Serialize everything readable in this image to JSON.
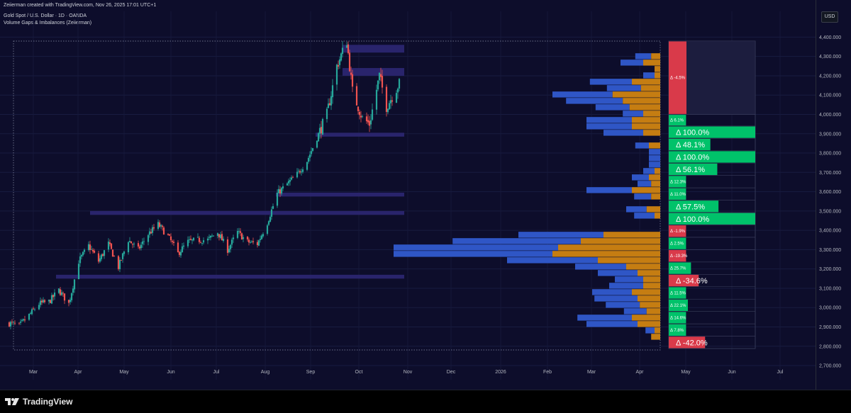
{
  "header": {
    "created_line": "Zeiierman created with TradingView.com, Nov 26, 2025 17:01 UTC+1",
    "symbol_line": "Gold Spot / U.S. Dollar · 1D · OANDA",
    "indicator_line": "Volume Gaps & Imbalances (Zeiierman)"
  },
  "price_axis": {
    "currency_label": "USD",
    "ticks": [
      "4,400.000",
      "4,300.000",
      "4,200.000",
      "4,100.000",
      "4,000.000",
      "3,900.000",
      "3,800.000",
      "3,700.000",
      "3,600.000",
      "3,500.000",
      "3,400.000",
      "3,300.000",
      "3,200.000",
      "3,100.000",
      "3,000.000",
      "2,900.000",
      "2,800.000",
      "2,700.000"
    ]
  },
  "footer": {
    "brand": "TradingView"
  },
  "colors": {
    "background": "#0d0d2b",
    "bull": "#26a69a",
    "bear": "#ef5350",
    "zone": "#2b2670",
    "buy_volume": "#2f56c6",
    "sell_volume": "#c57d12",
    "delta_positive": "#00c26a",
    "delta_negative": "#d93a4a"
  },
  "icons": {
    "logo": "tradingview-logo-icon"
  },
  "chart_data": {
    "type": "candlestick",
    "symbol": "Gold Spot / U.S. Dollar",
    "timeframe": "1D",
    "x_ticks": [
      "Mar",
      "Apr",
      "May",
      "Jun",
      "Jul",
      "Aug",
      "Sep",
      "Oct",
      "Nov",
      "Dec",
      "2026",
      "Feb",
      "Mar",
      "Apr",
      "May",
      "Jun",
      "Jul"
    ],
    "ylim": [
      2700,
      4400
    ],
    "price_path": [
      [
        "2025-02-24",
        2920
      ],
      [
        "2025-03-03",
        2905
      ],
      [
        "2025-03-10",
        2960
      ],
      [
        "2025-03-17",
        3020
      ],
      [
        "2025-03-24",
        3030
      ],
      [
        "2025-03-31",
        3090
      ],
      [
        "2025-04-07",
        3020
      ],
      [
        "2025-04-14",
        3240
      ],
      [
        "2025-04-21",
        3320
      ],
      [
        "2025-04-28",
        3240
      ],
      [
        "2025-05-05",
        3330
      ],
      [
        "2025-05-12",
        3210
      ],
      [
        "2025-05-19",
        3350
      ],
      [
        "2025-05-26",
        3300
      ],
      [
        "2025-06-02",
        3380
      ],
      [
        "2025-06-09",
        3430
      ],
      [
        "2025-06-16",
        3370
      ],
      [
        "2025-06-23",
        3280
      ],
      [
        "2025-06-30",
        3340
      ],
      [
        "2025-07-07",
        3350
      ],
      [
        "2025-07-14",
        3350
      ],
      [
        "2025-07-21",
        3390
      ],
      [
        "2025-07-28",
        3300
      ],
      [
        "2025-08-04",
        3390
      ],
      [
        "2025-08-11",
        3340
      ],
      [
        "2025-08-18",
        3330
      ],
      [
        "2025-08-25",
        3440
      ],
      [
        "2025-09-01",
        3590
      ],
      [
        "2025-09-08",
        3640
      ],
      [
        "2025-09-15",
        3690
      ],
      [
        "2025-09-22",
        3760
      ],
      [
        "2025-09-29",
        3880
      ],
      [
        "2025-10-06",
        4000
      ],
      [
        "2025-10-13",
        4250
      ],
      [
        "2025-10-20",
        4380
      ],
      [
        "2025-10-24",
        4120
      ],
      [
        "2025-10-31",
        3980
      ],
      [
        "2025-11-05",
        3950
      ],
      [
        "2025-11-12",
        4200
      ],
      [
        "2025-11-17",
        4040
      ],
      [
        "2025-11-26",
        4160
      ]
    ],
    "imbalance_zones": [
      {
        "start": "2025-10-17",
        "end": "2025-11-26",
        "low": 4320,
        "high": 4360
      },
      {
        "start": "2025-10-17",
        "end": "2025-11-26",
        "low": 4200,
        "high": 4240
      },
      {
        "start": "2025-09-28",
        "end": "2025-11-26",
        "low": 3885,
        "high": 3905
      },
      {
        "start": "2025-08-31",
        "end": "2025-11-26",
        "low": 3575,
        "high": 3595
      },
      {
        "start": "2025-04-22",
        "end": "2025-11-26",
        "low": 3480,
        "high": 3500
      },
      {
        "start": "2025-03-29",
        "end": "2025-11-26",
        "low": 3150,
        "high": 3170
      }
    ],
    "volume_profile": [
      {
        "price": 4300,
        "buy": 14,
        "sell": 8
      },
      {
        "price": 4267,
        "buy": 20,
        "sell": 15
      },
      {
        "price": 4234,
        "buy": 0,
        "sell": 5
      },
      {
        "price": 4201,
        "buy": 10,
        "sell": 5
      },
      {
        "price": 4168,
        "buy": 37,
        "sell": 25
      },
      {
        "price": 4135,
        "buy": 30,
        "sell": 17
      },
      {
        "price": 4102,
        "buy": 53,
        "sell": 42
      },
      {
        "price": 4069,
        "buy": 50,
        "sell": 33
      },
      {
        "price": 4036,
        "buy": 30,
        "sell": 27
      },
      {
        "price": 4003,
        "buy": 18,
        "sell": 15
      },
      {
        "price": 3970,
        "buy": 40,
        "sell": 25
      },
      {
        "price": 3937,
        "buy": 40,
        "sell": 25
      },
      {
        "price": 3904,
        "buy": 35,
        "sell": 15
      },
      {
        "price": 3871,
        "buy": 0,
        "sell": 0
      },
      {
        "price": 3838,
        "buy": 12,
        "sell": 10
      },
      {
        "price": 3805,
        "buy": 10,
        "sell": 0
      },
      {
        "price": 3772,
        "buy": 10,
        "sell": 0
      },
      {
        "price": 3739,
        "buy": 10,
        "sell": 0
      },
      {
        "price": 3706,
        "buy": 10,
        "sell": 5
      },
      {
        "price": 3673,
        "buy": 15,
        "sell": 10
      },
      {
        "price": 3640,
        "buy": 12,
        "sell": 8
      },
      {
        "price": 3607,
        "buy": 40,
        "sell": 25
      },
      {
        "price": 3574,
        "buy": 15,
        "sell": 8
      },
      {
        "price": 3541,
        "buy": 0,
        "sell": 0
      },
      {
        "price": 3508,
        "buy": 18,
        "sell": 12
      },
      {
        "price": 3475,
        "buy": 18,
        "sell": 5
      },
      {
        "price": 3442,
        "buy": 0,
        "sell": 0
      },
      {
        "price": 3409,
        "buy": 0,
        "sell": 0
      },
      {
        "price": 3376,
        "buy": 75,
        "sell": 50
      },
      {
        "price": 3343,
        "buy": 113,
        "sell": 70
      },
      {
        "price": 3310,
        "buy": 145,
        "sell": 90
      },
      {
        "price": 3277,
        "buy": 140,
        "sell": 95
      },
      {
        "price": 3244,
        "buy": 80,
        "sell": 55
      },
      {
        "price": 3211,
        "buy": 45,
        "sell": 30
      },
      {
        "price": 3178,
        "buy": 35,
        "sell": 20
      },
      {
        "price": 3145,
        "buy": 25,
        "sell": 15
      },
      {
        "price": 3112,
        "buy": 30,
        "sell": 15
      },
      {
        "price": 3079,
        "buy": 35,
        "sell": 25
      },
      {
        "price": 3046,
        "buy": 38,
        "sell": 20
      },
      {
        "price": 3013,
        "buy": 30,
        "sell": 18
      },
      {
        "price": 2980,
        "buy": 20,
        "sell": 12
      },
      {
        "price": 2947,
        "buy": 48,
        "sell": 25
      },
      {
        "price": 2914,
        "buy": 45,
        "sell": 20
      },
      {
        "price": 2881,
        "buy": 8,
        "sell": 5
      },
      {
        "price": 2848,
        "buy": 0,
        "sell": 8
      }
    ],
    "delta_bars": [
      {
        "label": "Δ -4.5%",
        "low": 4000,
        "high": 4380,
        "value": -4.5
      },
      {
        "label": "Δ 6.1%",
        "low": 3940,
        "high": 4000,
        "value": 6.1
      },
      {
        "label": "Δ 100.0%",
        "low": 3876,
        "high": 3940,
        "value": 100.0
      },
      {
        "label": "Δ 48.1%",
        "low": 3812,
        "high": 3876,
        "value": 48.1
      },
      {
        "label": "Δ 100.0%",
        "low": 3748,
        "high": 3812,
        "value": 100.0
      },
      {
        "label": "Δ 56.1%",
        "low": 3684,
        "high": 3748,
        "value": 56.1
      },
      {
        "label": "Δ 12.3%",
        "low": 3620,
        "high": 3684,
        "value": 12.3
      },
      {
        "label": "Δ 11.0%",
        "low": 3556,
        "high": 3620,
        "value": 11.0
      },
      {
        "label": "Δ 57.5%",
        "low": 3492,
        "high": 3556,
        "value": 57.5
      },
      {
        "label": "Δ 100.0%",
        "low": 3428,
        "high": 3492,
        "value": 100.0
      },
      {
        "label": "Δ -1.9%",
        "low": 3364,
        "high": 3428,
        "value": -1.9
      },
      {
        "label": "Δ 2.5%",
        "low": 3300,
        "high": 3364,
        "value": 2.5
      },
      {
        "label": "Δ -19.3%",
        "low": 3236,
        "high": 3300,
        "value": -19.3
      },
      {
        "label": "Δ 25.7%",
        "low": 3172,
        "high": 3236,
        "value": 25.7
      },
      {
        "label": "Δ -34.6%",
        "low": 3108,
        "high": 3172,
        "value": -34.6
      },
      {
        "label": "Δ 11.5%",
        "low": 3044,
        "high": 3108,
        "value": 11.5
      },
      {
        "label": "Δ 22.1%",
        "low": 2980,
        "high": 3044,
        "value": 22.1
      },
      {
        "label": "Δ 14.6%",
        "low": 2916,
        "high": 2980,
        "value": 14.6
      },
      {
        "label": "Δ 7.8%",
        "low": 2852,
        "high": 2916,
        "value": 7.8
      },
      {
        "label": "Δ -42.0%",
        "low": 2788,
        "high": 2852,
        "value": -42.0
      }
    ]
  }
}
